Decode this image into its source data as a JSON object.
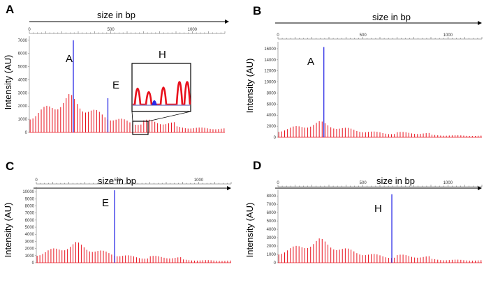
{
  "figure": {
    "panels": [
      {
        "letter": "A",
        "top_axis_title": "size in bp",
        "y_axis_title": "Intensity (AU)",
        "size_ticks": [
          "0",
          "500",
          "1000"
        ],
        "intensity_ticks": [
          "0",
          "1000",
          "2000",
          "3000",
          "4000",
          "5000",
          "6000",
          "7000"
        ],
        "peak_labels": [
          "A",
          "E",
          "H"
        ],
        "inset_label": "H"
      },
      {
        "letter": "B",
        "top_axis_title": "size in bp",
        "y_axis_title": "Intensity (AU)",
        "size_ticks": [
          "0",
          "500",
          "1000"
        ],
        "intensity_ticks": [
          "0",
          "2000",
          "4000",
          "6000",
          "8000",
          "10000",
          "12000",
          "14000",
          "16000"
        ],
        "peak_labels": [
          "A"
        ]
      },
      {
        "letter": "C",
        "top_axis_title": "size in bp",
        "y_axis_title": "Intensity (AU)",
        "size_ticks": [
          "0",
          "500",
          "1000"
        ],
        "intensity_ticks": [
          "0",
          "1000",
          "2000",
          "3000",
          "4000",
          "5000",
          "6000",
          "7000",
          "8000",
          "9000",
          "10000"
        ],
        "peak_labels": [
          "E"
        ]
      },
      {
        "letter": "D",
        "top_axis_title": "size in bp",
        "y_axis_title": "Intensity (AU)",
        "size_ticks": [
          "0",
          "500",
          "1000"
        ],
        "intensity_ticks": [
          "0",
          "1000",
          "2000",
          "3000",
          "4000",
          "5000",
          "6000",
          "7000",
          "8000"
        ],
        "peak_labels": [
          "H"
        ]
      }
    ]
  },
  "chart_data": [
    {
      "type": "line",
      "panel": "A",
      "xlabel": "size in bp",
      "ylabel": "Intensity (AU)",
      "xlim": [
        0,
        1200
      ],
      "ylim": [
        0,
        7200
      ],
      "colors": {
        "ladder": "#e8101c",
        "sample": "#2a2ae6"
      },
      "series": [
        {
          "values_x": [
            270,
            482
          ],
          "values_y": [
            7000,
            2600
          ]
        }
      ],
      "ladder_profile": {
        "amplitude": 3000,
        "peak_bp": 250
      }
    },
    {
      "type": "line",
      "panel": "B",
      "xlabel": "size in bp",
      "ylabel": "Intensity (AU)",
      "xlim": [
        0,
        1200
      ],
      "ylim": [
        0,
        17000
      ],
      "colors": {
        "ladder": "#e8101c",
        "sample": "#2a2ae6"
      },
      "series": [
        {
          "values_x": [
            270
          ],
          "values_y": [
            16300
          ]
        }
      ],
      "ladder_profile": {
        "amplitude": 3000,
        "peak_bp": 250
      }
    },
    {
      "type": "line",
      "panel": "C",
      "xlabel": "size in bp",
      "ylabel": "Intensity (AU)",
      "xlim": [
        0,
        1200
      ],
      "ylim": [
        0,
        10500
      ],
      "colors": {
        "ladder": "#e8101c",
        "sample": "#2a2ae6"
      },
      "series": [
        {
          "values_x": [
            482
          ],
          "values_y": [
            10200
          ]
        }
      ],
      "ladder_profile": {
        "amplitude": 3000,
        "peak_bp": 250
      }
    },
    {
      "type": "line",
      "panel": "D",
      "xlabel": "size in bp",
      "ylabel": "Intensity (AU)",
      "xlim": [
        0,
        1200
      ],
      "ylim": [
        0,
        8600
      ],
      "colors": {
        "ladder": "#e8101c",
        "sample": "#2a2ae6"
      },
      "series": [
        {
          "values_x": [
            670
          ],
          "values_y": [
            8200
          ]
        }
      ],
      "ladder_profile": {
        "amplitude": 3000,
        "peak_bp": 250
      }
    }
  ]
}
